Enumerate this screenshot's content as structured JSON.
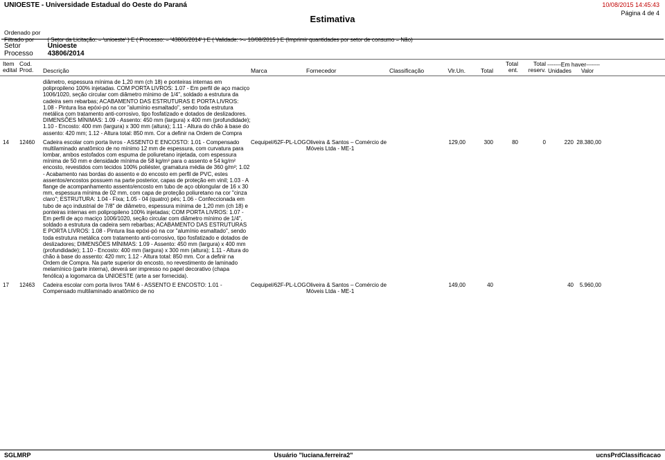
{
  "header": {
    "orgTitle": "UNIOESTE - Universidade Estadual do Oeste do Paraná",
    "reportTitle": "Estimativa",
    "timestamp": "10/08/2015 14:45:43",
    "pageInfo": "Página 4 de 4",
    "ordenadoLabel": "Ordenado por",
    "filtradoLabel": "Filtrado por",
    "filterText": "( Setor da Licitação: = 'unioeste' ) E ( Processo: = '43806/2014' ) E ( Validade: >= 10/08/2015 ) E (Imprimir quantidades por setor de consumo = Não)"
  },
  "sector": {
    "setorLabel": "Setor",
    "setorValue": "Unioeste",
    "processoLabel": "Processo",
    "processoValue": "43806/2014"
  },
  "columns": {
    "itemEdital1": "Item",
    "itemEdital2": "edital",
    "codProd1": "Cod.",
    "codProd2": "Prod.",
    "descricao": "Descrição",
    "marca": "Marca",
    "fornecedor": "Fornecedor",
    "classificacao": "Classificação",
    "vlrUn": "Vlr.Un.",
    "total": "Total",
    "totalEnt1": "Total",
    "totalEnt2": "ent.",
    "totalReserv1": "Total",
    "totalReserv2": "reserv.",
    "emHaver": "-------Em haver-------",
    "unidades": "Unidades",
    "valor": "Valor"
  },
  "prefixDesc": "diâmetro, espessura mínima de 1,20 mm (ch 18) e ponteiras internas em polipropileno 100% injetadas. COM PORTA LIVROS: 1.07 - Em perfil de aço maciço 1006/1020, seção circular com diâmetro mínimo de 1/4\", soldado a estrutura da cadeira sem rebarbas; ACABAMENTO DAS ESTRUTURAS E PORTA LIVROS: 1.08 - Pintura lisa epóxi-pó na cor \"alumínio esmaltado\", sendo toda estrutura metálica com tratamento anti-corrosivo, tipo fosfatizado e dotados de deslizadores. DIMENSÕES MÍNIMAS: 1.09 - Assento: 450 mm (largura) x 400 mm (profundidade); 1.10 - Encosto: 400 mm (largura) x 300 mm (altura); 1.11 - Altura do chão à base do assento: 420 mm; 1.12 - Altura total: 850 mm. Cor a definir na Ordem de Compra",
  "row14": {
    "item": "14",
    "cod": "12460",
    "desc": "Cadeira escolar com porta livros - ASSENTO E ENCOSTO: 1.01 - Compensado multilaminado anatômico de no mínimo 12 mm de espessura, com curvatura para lombar, ambos estofados com espuma de poliuretano injetada, com espessura mínima de 50 mm e densidade mínima de 58 kg/m³ para o assento e 54 kg/m² encosto, revestidos com tecidos 100% poliéster, gramatura média de 360 g/m²; 1.02 - Acabamento nas bordas do assento e do encosto em perfil de PVC, estes assentos/encostos possuem na parte posterior, capas de proteção em vinil; 1.03 - A flange de acompanhamento assento/encosto em tubo de aço oblongular de 16 x 30 mm, espessura mínima de 02 mm, com capa de proteção poliuretano na cor \"cinza claro\"; ESTRUTURA: 1.04 - Fixa; 1.05 - 04 (quatro) pés; 1.06 - Confeccionada em tubo de aço industrial de 7/8\" de diâmetro, espessura mínima de 1,20 mm (ch 18) e ponteiras internas em polipropileno 100% injetadas; COM PORTA LIVROS: 1.07 - Em perfil de aço maciço 1006/1020, seção circular com diâmetro mínimo de 1/4\", soldado a estrutura da cadeira sem rebarbas; ACABAMENTO DAS ESTRUTURAS E PORTA LIVROS: 1.08 - Pintura lisa epóxi-pó na cor \"alumínio esmaltado\", sendo toda estrutura metálica com tratamento anti-corrosivo, tipo fosfatizado e dotados de deslizadores; DIMENSÕES MÍNIMAS: 1.09 - Assento: 450 mm (largura) x 400 mm (profundidade); 1.10 - Encosto: 400 mm (largura) x 300 mm (altura); 1.11 - Altura do chão à base do assento: 420 mm; 1.12 - Altura total: 850 mm. Cor a definir na Ordem de Compra. Na parte superior do encosto, no revestimento de laminado melamínico (parte interna), deverá ser impresso no papel decorativo (chapa fenólica) a logomarca da UNIOESTE (arte a ser fornecida).",
    "marca": "Cequipel/62F-PL-LOG",
    "fornecedor": "Oliveira & Santos – Comércio de Móveis Ltda - ME-1",
    "vlrUn": "129,00",
    "total": "300",
    "totEnt": "80",
    "totReserv": "0",
    "haverUn": "220",
    "haverVal": "28.380,00"
  },
  "row17": {
    "item": "17",
    "cod": "12463",
    "desc": "Cadeira escolar com porta livros TAM 6 - ASSENTO E ENCOSTO: 1.01 - Compensado multilaminado anatômico de no",
    "marca": "Cequipel/62F-PL-LOG",
    "fornecedor": "Oliveira & Santos – Comércio de Móveis Ltda - ME-1",
    "vlrUn": "149,00",
    "total": "40",
    "totEnt": "",
    "totReserv": "",
    "haverUn": "40",
    "haverVal": "5.960,00"
  },
  "footer": {
    "left": "SGLMRP",
    "center": "Usuário \"luciana.ferreira2\"",
    "right": "ucnsPrdClassificacao"
  }
}
